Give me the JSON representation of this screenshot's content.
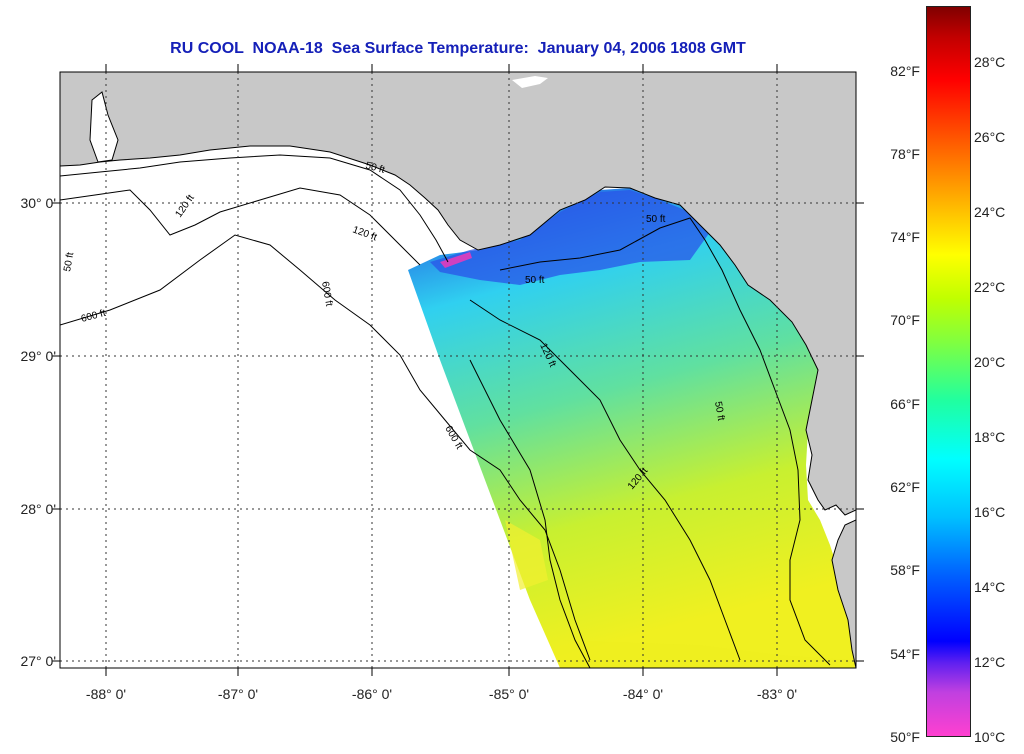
{
  "title": "RU COOL  NOAA-18  Sea Surface Temperature:  January 04, 2006 1808 GMT",
  "latitude_labels": [
    "30° 0'",
    "29° 0'",
    "28° 0'",
    "27° 0'"
  ],
  "longitude_labels": [
    "-88° 0'",
    "-87° 0'",
    "-86° 0'",
    "-85° 0'",
    "-84° 0'",
    "-83° 0'"
  ],
  "map_extent": {
    "lon_min": -88.35,
    "lon_max": -82.5,
    "lat_min": 26.95,
    "lat_max": 30.85
  },
  "contour_labels": [
    "50 ft",
    "120 ft",
    "600 ft",
    "50 ft",
    "120 ft",
    "600 ft",
    "50 ft",
    "120 ft",
    "50 ft",
    "120 ft",
    "600 ft",
    "50 ft"
  ],
  "colorbar": {
    "fahrenheit_labels": [
      "82°F",
      "78°F",
      "74°F",
      "70°F",
      "66°F",
      "62°F",
      "58°F",
      "54°F",
      "50°F"
    ],
    "celsius_labels": [
      "28°C",
      "26°C",
      "24°C",
      "22°C",
      "20°C",
      "18°C",
      "16°C",
      "14°C",
      "12°C",
      "10°C"
    ],
    "celsius_min": 10,
    "celsius_max": 29.5,
    "fahrenheit_min": 50,
    "fahrenheit_max": 85.1
  },
  "colors": {
    "land": "#c8c8c8",
    "no_data": "#ffffff",
    "title": "#1520b8",
    "cold": "#2040e0",
    "cool": "#30d0f0",
    "mild": "#60e0a0",
    "warm": "#c8f030",
    "hot": "#f0f020"
  }
}
